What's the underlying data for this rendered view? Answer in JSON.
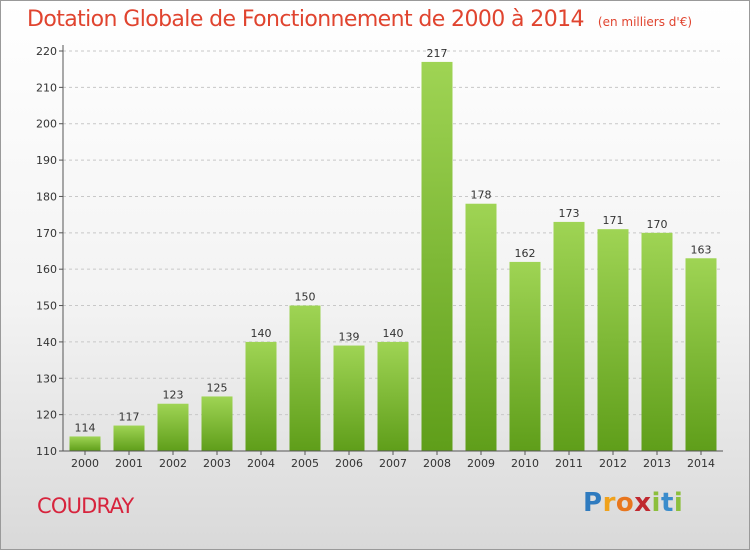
{
  "chart_data": {
    "type": "bar",
    "title": "Dotation Globale de Fonctionnement de 2000 à 2014",
    "subtitle": "(en milliers d'€)",
    "categories": [
      "2000",
      "2001",
      "2002",
      "2003",
      "2004",
      "2005",
      "2006",
      "2007",
      "2008",
      "2009",
      "2010",
      "2011",
      "2012",
      "2013",
      "2014"
    ],
    "values": [
      114,
      117,
      123,
      125,
      140,
      150,
      139,
      140,
      217,
      178,
      162,
      173,
      171,
      170,
      163
    ],
    "ylim": [
      110,
      220
    ],
    "yticks": [
      110,
      120,
      130,
      140,
      150,
      160,
      170,
      180,
      190,
      200,
      210,
      220
    ],
    "grid": true,
    "bar_color": "#7cbd32"
  },
  "commune": "COUDRAY",
  "logo": {
    "letters": [
      "P",
      "r",
      "o",
      "x",
      "i",
      "t",
      "i"
    ],
    "colors": [
      "#2f7bbf",
      "#f0a21c",
      "#e8761e",
      "#c0282f",
      "#8cbf3c",
      "#3a8ccc",
      "#8cbf3c"
    ]
  }
}
